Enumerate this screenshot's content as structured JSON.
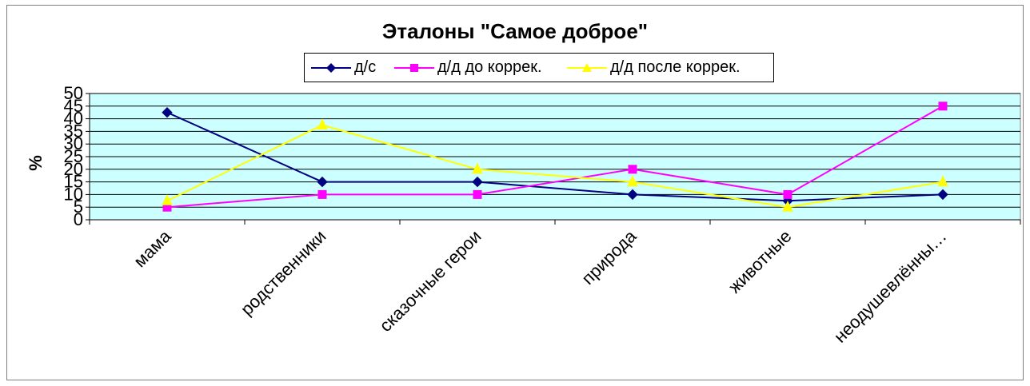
{
  "chart_data": {
    "type": "line",
    "title": "Эталоны \"Самое доброе\"",
    "ylabel": "%",
    "xlabel": "",
    "ylim": [
      0,
      50
    ],
    "yticks": [
      0,
      5,
      10,
      15,
      20,
      25,
      30,
      35,
      40,
      45,
      50
    ],
    "categories": [
      "мама",
      "родственники",
      "сказочные герои",
      "природа",
      "животные",
      "неодушевлённы…"
    ],
    "grid": true,
    "legend_position": "top",
    "plot_background": "#CCFFFF",
    "series": [
      {
        "name": "д/с",
        "values": [
          42.5,
          15,
          15,
          10,
          7.5,
          10
        ],
        "color": "#000080",
        "marker": "diamond"
      },
      {
        "name": "д/д до коррек.",
        "values": [
          5,
          10,
          10,
          20,
          10,
          45
        ],
        "color": "#FF00FF",
        "marker": "square"
      },
      {
        "name": "д/д после коррек.",
        "values": [
          7.5,
          37.5,
          20,
          15,
          5,
          15
        ],
        "color": "#FFFF00",
        "marker": "triangle"
      }
    ]
  }
}
